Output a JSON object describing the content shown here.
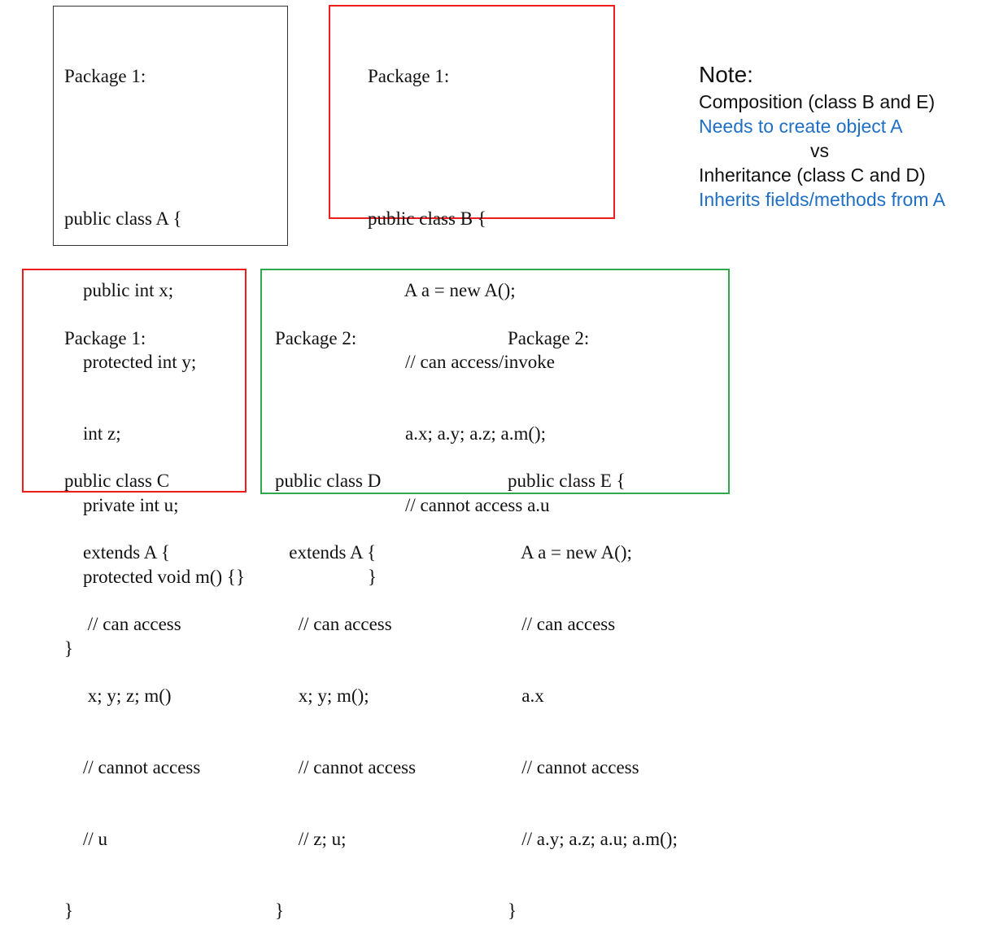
{
  "box_a": {
    "header": "Package 1:",
    "lines": [
      "public class A {",
      "    public int x;",
      "    protected int y;",
      "    int z;",
      "    private int u;",
      "    protected void m() {}",
      "}"
    ]
  },
  "box_b": {
    "header": "Package 1:",
    "lines": [
      "public class B {",
      "        A a = new A();",
      "        // can access/invoke",
      "        a.x; a.y; a.z; a.m();",
      "        // cannot access a.u",
      "}"
    ]
  },
  "box_c": {
    "header": "Package 1:",
    "lines": [
      "public class C",
      "    extends A {",
      "     // can access",
      "     x; y; z; m()",
      "    // cannot access",
      "    // u",
      "}"
    ]
  },
  "box_d": {
    "header": "Package 2:",
    "lines": [
      "public class D",
      "   extends A {",
      "     // can access",
      "     x; y; m();",
      "     // cannot access",
      "     // z; u;",
      "}"
    ]
  },
  "box_e": {
    "header": "Package 2:",
    "lines": [
      "public class E {",
      "   A a = new A();",
      "   // can access",
      "   a.x",
      "   // cannot access",
      "   // a.y; a.z; a.u; a.m();",
      "}"
    ]
  },
  "note": {
    "title": "Note:",
    "composition": "Composition (class B and E)",
    "composition_desc": "Needs to create object A",
    "vs": "vs",
    "inheritance": "Inheritance (class C and D)",
    "inheritance_desc": "Inherits fields/methods from A"
  },
  "colors": {
    "red_border": "#ee1c1c",
    "green_border": "#2ea84a",
    "note_blue": "#1f6fc4"
  }
}
